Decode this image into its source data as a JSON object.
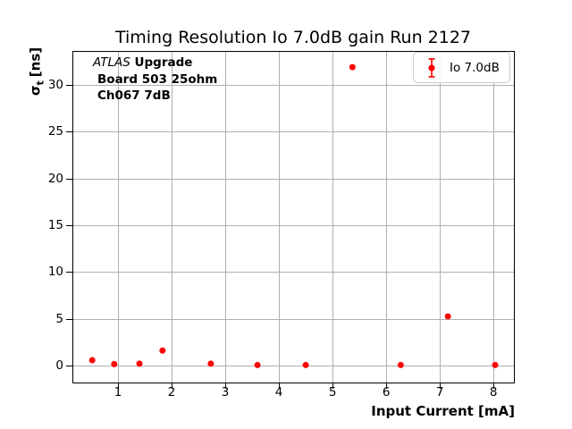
{
  "window": {
    "background": "#ffffff"
  },
  "chart_data": {
    "type": "scatter",
    "title": "Timing Resolution Io 7.0dB gain Run 2127",
    "xlabel": "Input Current [mA]",
    "ylabel": "σt [ns]",
    "ylabel_parts": {
      "symbol": "σ",
      "subscript": "t",
      "units": "[ns]"
    },
    "xlim": [
      0.15,
      8.38
    ],
    "ylim": [
      -1.82,
      33.63
    ],
    "xticks": [
      1,
      2,
      3,
      4,
      5,
      6,
      7,
      8
    ],
    "yticks": [
      0,
      5,
      10,
      15,
      20,
      25,
      30
    ],
    "grid": true,
    "grid_color": "#b0b0b0",
    "axis_color": "#000000",
    "legend": {
      "label": "Io 7.0dB",
      "position": "upper right"
    },
    "series": [
      {
        "name": "Io 7.0dB",
        "color": "#ff0000",
        "marker": "o",
        "x": [
          0.52,
          0.93,
          1.4,
          1.83,
          2.73,
          3.6,
          4.5,
          5.37,
          6.27,
          7.15,
          8.03
        ],
        "y": [
          0.57,
          0.15,
          0.2,
          1.6,
          0.2,
          0.05,
          0.05,
          31.9,
          0.05,
          5.25,
          0.05
        ],
        "yerr": [
          0.15,
          0.1,
          0.1,
          0.12,
          0.1,
          0.05,
          0.05,
          0.3,
          0.05,
          0.15,
          0.05
        ]
      }
    ],
    "annotation": {
      "experiment": "ATLAS",
      "line1_rest": "Upgrade",
      "line2": "Board 503 25ohm",
      "line3": "Ch067 7dB"
    }
  }
}
